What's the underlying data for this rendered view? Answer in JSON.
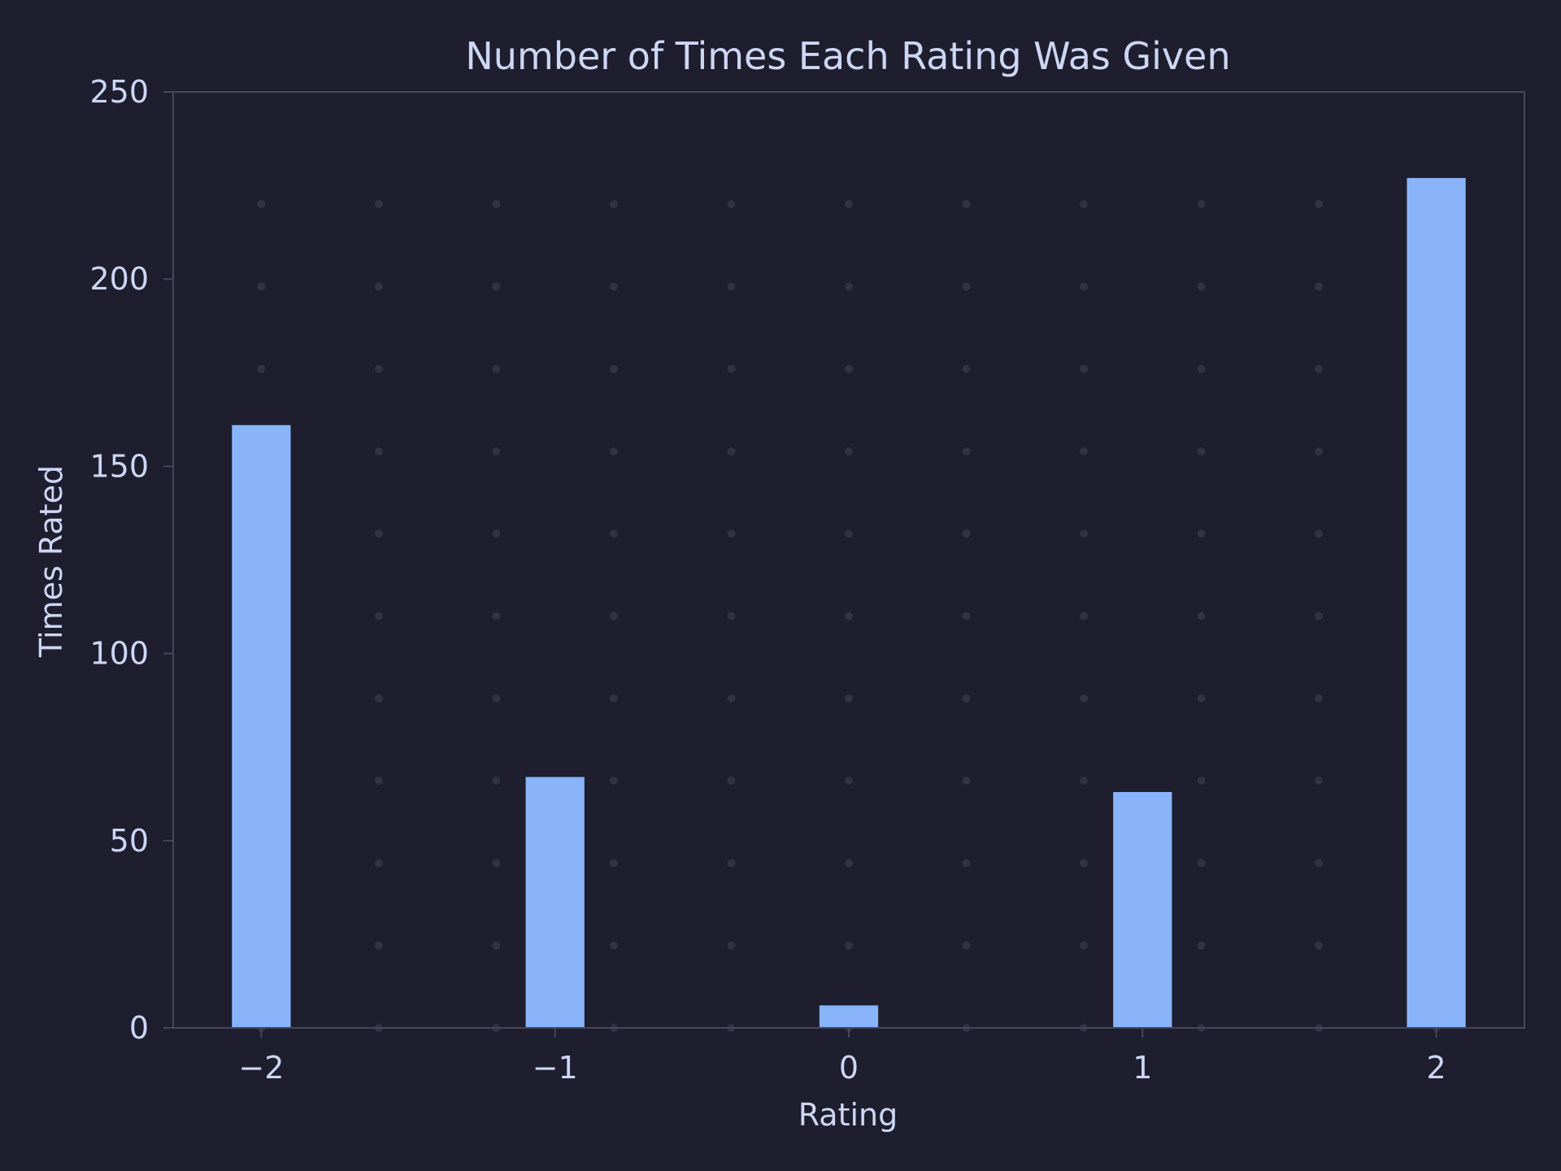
{
  "chart_data": {
    "type": "bar",
    "title": "Number of Times Each Rating Was Given",
    "xlabel": "Rating",
    "ylabel": "Times Rated",
    "categories": [
      -2,
      -1,
      0,
      1,
      2
    ],
    "category_labels": [
      "−2",
      "−1",
      "0",
      "1",
      "2"
    ],
    "values": [
      161,
      67,
      6,
      63,
      227
    ],
    "xlim": [
      -2.3,
      2.3
    ],
    "ylim": [
      0,
      250
    ],
    "yticks": [
      0,
      50,
      100,
      150,
      200,
      250
    ],
    "grid": "dotted",
    "legend": "none"
  },
  "colors": {
    "background": "#1e1e2e",
    "bar": "#89b4fa",
    "text": "#cdd6f4",
    "axis": "#45475a",
    "grid_dot": "#313244"
  }
}
